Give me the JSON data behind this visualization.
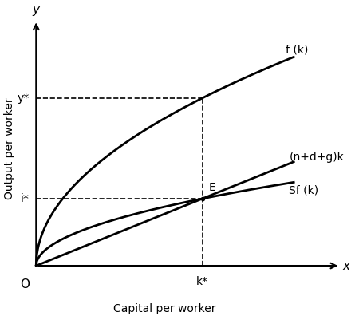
{
  "s": 0.4,
  "alpha": 0.5,
  "ndg": 0.1,
  "curve_color": "black",
  "line_width": 2.0,
  "dashed_color": "black",
  "label_fk": "f (k)",
  "label_ndgk": "(n+d+g)k",
  "label_sfk": "Sf (k)",
  "label_E": "E",
  "label_ystar": "y*",
  "label_istar": "i*",
  "label_kstar": "k*",
  "label_x": "x",
  "label_y": "y",
  "label_O": "O",
  "xlabel": "Capital per worker",
  "ylabel": "Output per worker"
}
